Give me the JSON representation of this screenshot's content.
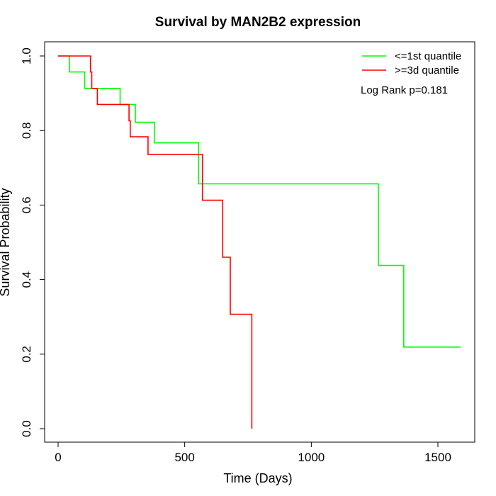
{
  "chart_data": {
    "type": "line",
    "title": "Survival by MAN2B2 expression",
    "xlabel": "Time (Days)",
    "ylabel": "Survival Probability",
    "xlim": [
      0,
      1620
    ],
    "ylim": [
      0,
      1.0
    ],
    "x_ticks": [
      0,
      500,
      1000,
      1500
    ],
    "x_tick_labels": [
      "0",
      "500",
      "1000",
      "1500"
    ],
    "y_ticks": [
      0.0,
      0.2,
      0.4,
      0.6,
      0.8,
      1.0
    ],
    "y_tick_labels": [
      "0.0",
      "0.2",
      "0.4",
      "0.6",
      "0.8",
      "1.0"
    ],
    "grid": false,
    "legend_position": "top-right",
    "annotation": "Log Rank p=0.181",
    "series": [
      {
        "name": "<=1st quantile",
        "color": "#00ff00",
        "step": "post",
        "x": [
          0,
          45,
          105,
          245,
          305,
          380,
          555,
          1265,
          1365,
          1590
        ],
        "y": [
          1.0,
          0.957,
          0.913,
          0.87,
          0.822,
          0.767,
          0.657,
          0.438,
          0.219,
          0.219
        ]
      },
      {
        "name": ">=3d quantile",
        "color": "#ff0000",
        "step": "post",
        "x": [
          0,
          128,
          133,
          155,
          280,
          285,
          355,
          570,
          650,
          680,
          765
        ],
        "y": [
          1.0,
          0.957,
          0.913,
          0.87,
          0.826,
          0.783,
          0.736,
          0.613,
          0.46,
          0.307,
          0.0
        ]
      }
    ]
  }
}
